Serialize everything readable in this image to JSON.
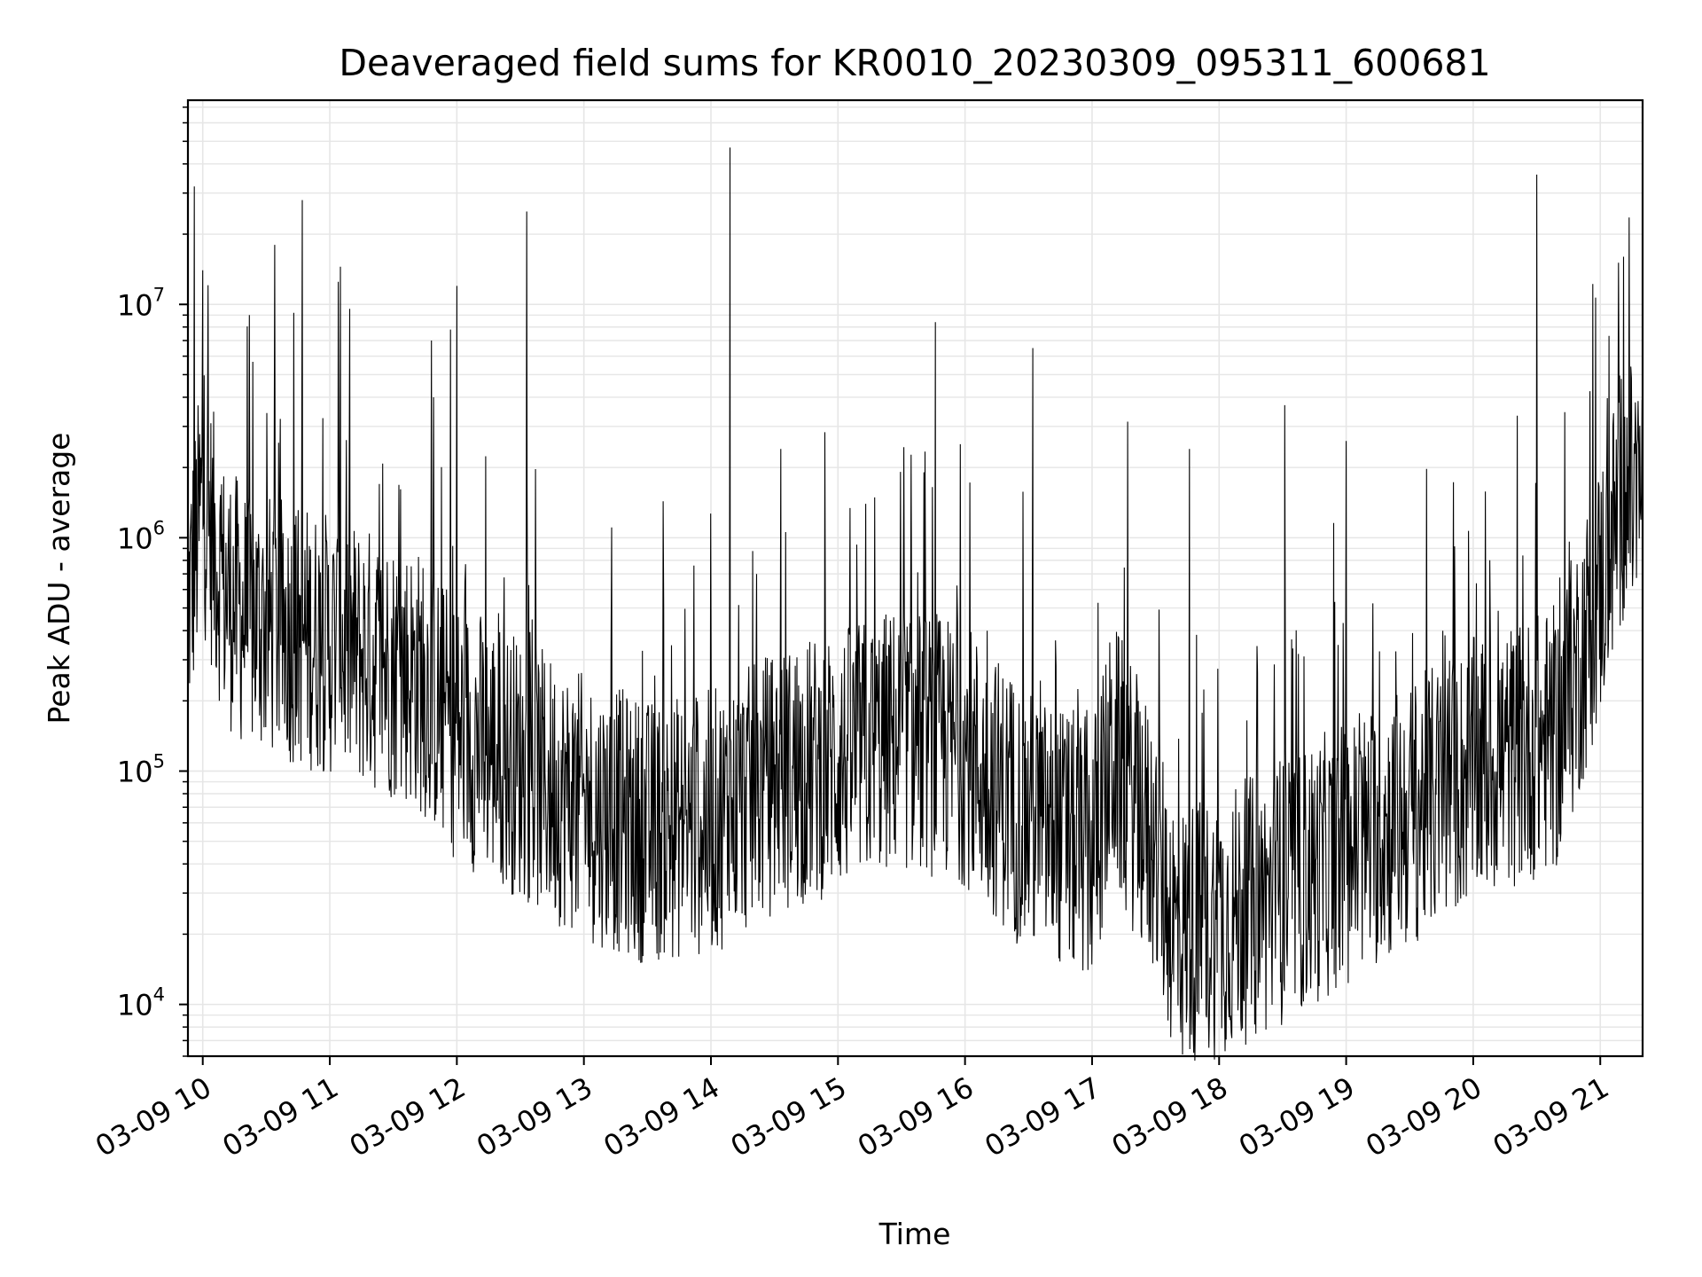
{
  "chart_data": {
    "type": "line",
    "title": "Deaveraged field sums for KR0010_20230309_095311_600681",
    "xlabel": "Time",
    "ylabel": "Peak ADU - average",
    "yscale": "log",
    "ylim": [
      6000,
      75000000
    ],
    "xlim": [
      "2023-03-09 09:53",
      "2023-03-09 21:20"
    ],
    "grid": true,
    "line_color": "#000000",
    "grid_color": "#e6e6e6",
    "x_ticks": [
      {
        "value": "2023-03-09 10:00",
        "label": "03-09 10"
      },
      {
        "value": "2023-03-09 11:00",
        "label": "03-09 11"
      },
      {
        "value": "2023-03-09 12:00",
        "label": "03-09 12"
      },
      {
        "value": "2023-03-09 13:00",
        "label": "03-09 13"
      },
      {
        "value": "2023-03-09 14:00",
        "label": "03-09 14"
      },
      {
        "value": "2023-03-09 15:00",
        "label": "03-09 15"
      },
      {
        "value": "2023-03-09 16:00",
        "label": "03-09 16"
      },
      {
        "value": "2023-03-09 17:00",
        "label": "03-09 17"
      },
      {
        "value": "2023-03-09 18:00",
        "label": "03-09 18"
      },
      {
        "value": "2023-03-09 19:00",
        "label": "03-09 19"
      },
      {
        "value": "2023-03-09 20:00",
        "label": "03-09 20"
      },
      {
        "value": "2023-03-09 21:00",
        "label": "03-09 21"
      }
    ],
    "y_ticks": [
      {
        "value": 10000,
        "base": "10",
        "exp": "4"
      },
      {
        "value": 100000,
        "base": "10",
        "exp": "5"
      },
      {
        "value": 1000000,
        "base": "10",
        "exp": "6"
      },
      {
        "value": 10000000,
        "base": "10",
        "exp": "7"
      }
    ],
    "series": [
      {
        "baseline": [
          [
            "2023-03-09 09:53",
            500000
          ],
          [
            "2023-03-09 10:00",
            1500000
          ],
          [
            "2023-03-09 10:10",
            600000
          ],
          [
            "2023-03-09 10:20",
            450000
          ],
          [
            "2023-03-09 10:40",
            400000
          ],
          [
            "2023-03-09 11:00",
            350000
          ],
          [
            "2023-03-09 11:20",
            300000
          ],
          [
            "2023-03-09 11:40",
            260000
          ],
          [
            "2023-03-09 12:00",
            150000
          ],
          [
            "2023-03-09 12:20",
            120000
          ],
          [
            "2023-03-09 12:40",
            90000
          ],
          [
            "2023-03-09 13:00",
            70000
          ],
          [
            "2023-03-09 13:30",
            55000
          ],
          [
            "2023-03-09 14:00",
            60000
          ],
          [
            "2023-03-09 14:30",
            90000
          ],
          [
            "2023-03-09 15:00",
            110000
          ],
          [
            "2023-03-09 15:30",
            140000
          ],
          [
            "2023-03-09 16:00",
            120000
          ],
          [
            "2023-03-09 16:30",
            60000
          ],
          [
            "2023-03-09 17:00",
            45000
          ],
          [
            "2023-03-09 17:10",
            120000
          ],
          [
            "2023-03-09 17:30",
            45000
          ],
          [
            "2023-03-09 17:40",
            20000
          ],
          [
            "2023-03-09 18:00",
            22000
          ],
          [
            "2023-03-09 18:30",
            30000
          ],
          [
            "2023-03-09 19:00",
            45000
          ],
          [
            "2023-03-09 19:30",
            65000
          ],
          [
            "2023-03-09 20:00",
            100000
          ],
          [
            "2023-03-09 20:40",
            140000
          ],
          [
            "2023-03-09 21:00",
            600000
          ],
          [
            "2023-03-09 21:10",
            1500000
          ],
          [
            "2023-03-09 21:20",
            1500000
          ]
        ],
        "spikes": [
          [
            "2023-03-09 09:56",
            32000000
          ],
          [
            "2023-03-09 10:00",
            14000000
          ],
          [
            "2023-03-09 10:22",
            9000000
          ],
          [
            "2023-03-09 10:34",
            18000000
          ],
          [
            "2023-03-09 10:43",
            9200000
          ],
          [
            "2023-03-09 10:47",
            28000000
          ],
          [
            "2023-03-09 11:04",
            12500000
          ],
          [
            "2023-03-09 11:05",
            14500000
          ],
          [
            "2023-03-09 11:48",
            7000000
          ],
          [
            "2023-03-09 11:49",
            4000000
          ],
          [
            "2023-03-09 11:57",
            7800000
          ],
          [
            "2023-03-09 12:00",
            12000000
          ],
          [
            "2023-03-09 12:33",
            25000000
          ],
          [
            "2023-03-09 14:09",
            47000000
          ],
          [
            "2023-03-09 14:33",
            2400000
          ],
          [
            "2023-03-09 15:46",
            8400000
          ],
          [
            "2023-03-09 16:32",
            6500000
          ],
          [
            "2023-03-09 17:46",
            2400000
          ],
          [
            "2023-03-09 18:31",
            3700000
          ],
          [
            "2023-03-09 19:00",
            2600000
          ],
          [
            "2023-03-09 20:30",
            36000000
          ],
          [
            "2023-03-09 21:11",
            16000000
          ]
        ]
      }
    ]
  }
}
